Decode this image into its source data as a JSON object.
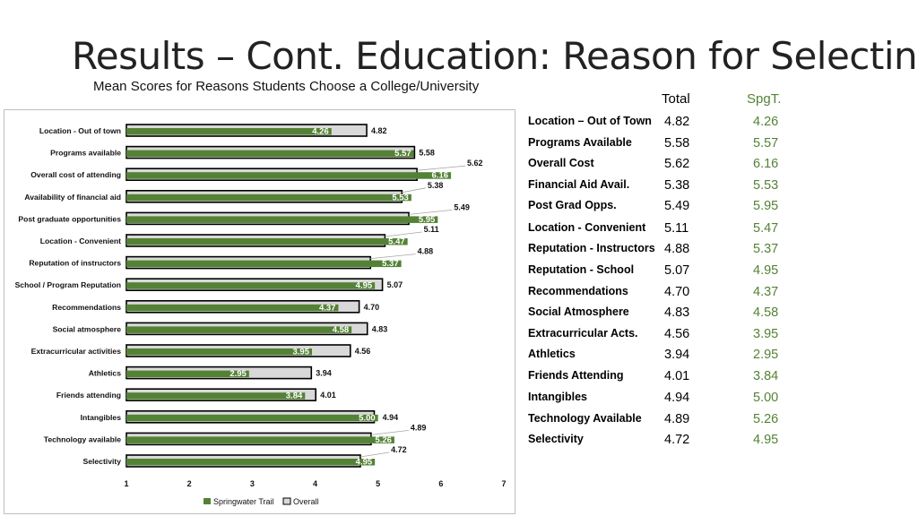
{
  "slide": {
    "title": "Results – Cont. Education: Reason for Selecting",
    "subtitle": "Mean Scores for Reasons Students Choose a College/University"
  },
  "table": {
    "headers": {
      "total": "Total",
      "spgt": "SpgT."
    },
    "rows": [
      {
        "label": "Location – Out of Town",
        "total": "4.82",
        "spgt": "4.26"
      },
      {
        "label": "Programs Available",
        "total": "5.58",
        "spgt": "5.57"
      },
      {
        "label": "Overall Cost",
        "total": "5.62",
        "spgt": "6.16"
      },
      {
        "label": "Financial Aid Avail.",
        "total": "5.38",
        "spgt": "5.53"
      },
      {
        "label": "Post Grad Opps.",
        "total": "5.49",
        "spgt": "5.95"
      },
      {
        "label": "Location - Convenient",
        "total": "5.11",
        "spgt": "5.47"
      },
      {
        "label": "Reputation - Instructors",
        "total": "4.88",
        "spgt": "5.37"
      },
      {
        "label": "Reputation - School",
        "total": "5.07",
        "spgt": "4.95"
      },
      {
        "label": "Recommendations",
        "total": "4.70",
        "spgt": "4.37"
      },
      {
        "label": "Social Atmosphere",
        "total": "4.83",
        "spgt": "4.58"
      },
      {
        "label": "Extracurricular Acts.",
        "total": "4.56",
        "spgt": "3.95"
      },
      {
        "label": "Athletics",
        "total": "3.94",
        "spgt": "2.95"
      },
      {
        "label": "Friends Attending",
        "total": "4.01",
        "spgt": "3.84"
      },
      {
        "label": "Intangibles",
        "total": "4.94",
        "spgt": "5.00"
      },
      {
        "label": "Technology Available",
        "total": "4.89",
        "spgt": "5.26"
      },
      {
        "label": "Selectivity",
        "total": "4.72",
        "spgt": "4.95"
      }
    ]
  },
  "chart_data": {
    "type": "bar",
    "orientation": "horizontal",
    "categories": [
      "Location - Out of town",
      "Programs available",
      "Overall cost of attending",
      "Availability of financial aid",
      "Post graduate opportunities",
      "Location - Convenient",
      "Reputation of instructors",
      "School / Program Reputation",
      "Recommendations",
      "Social atmosphere",
      "Extracurricular activities",
      "Athletics",
      "Friends attending",
      "Intangibles",
      "Technology available",
      "Selectivity"
    ],
    "series": [
      {
        "name": "Springwater Trail",
        "color": "#548235",
        "values": [
          4.26,
          5.57,
          6.16,
          5.53,
          5.95,
          5.47,
          5.37,
          4.95,
          4.37,
          4.58,
          3.95,
          2.95,
          3.84,
          5.0,
          5.26,
          4.95
        ],
        "labels": [
          "4.26",
          "5.57",
          "6.16",
          "5.53",
          "5.95",
          "5.47",
          "5.37",
          "4.95",
          "4.37",
          "4.58",
          "3.95",
          "2.95",
          "3.84",
          "5.00",
          "5.26",
          "4.95"
        ]
      },
      {
        "name": "Overall",
        "color": "#d9d9d9",
        "values": [
          4.82,
          5.58,
          5.62,
          5.38,
          5.49,
          5.11,
          4.88,
          5.07,
          4.7,
          4.83,
          4.56,
          3.94,
          4.01,
          4.94,
          4.89,
          4.72
        ],
        "labels": [
          "4.82",
          "5.58",
          "5.62",
          "5.38",
          "5.49",
          "5.11",
          "4.88",
          "5.07",
          "4.70",
          "4.83",
          "4.56",
          "3.94",
          "4.01",
          "4.94",
          "4.89",
          "4.72"
        ]
      }
    ],
    "xlim": [
      1,
      7
    ],
    "xticks": [
      "1",
      "2",
      "3",
      "4",
      "5",
      "6",
      "7"
    ],
    "legend_position": "bottom",
    "grid": false
  }
}
